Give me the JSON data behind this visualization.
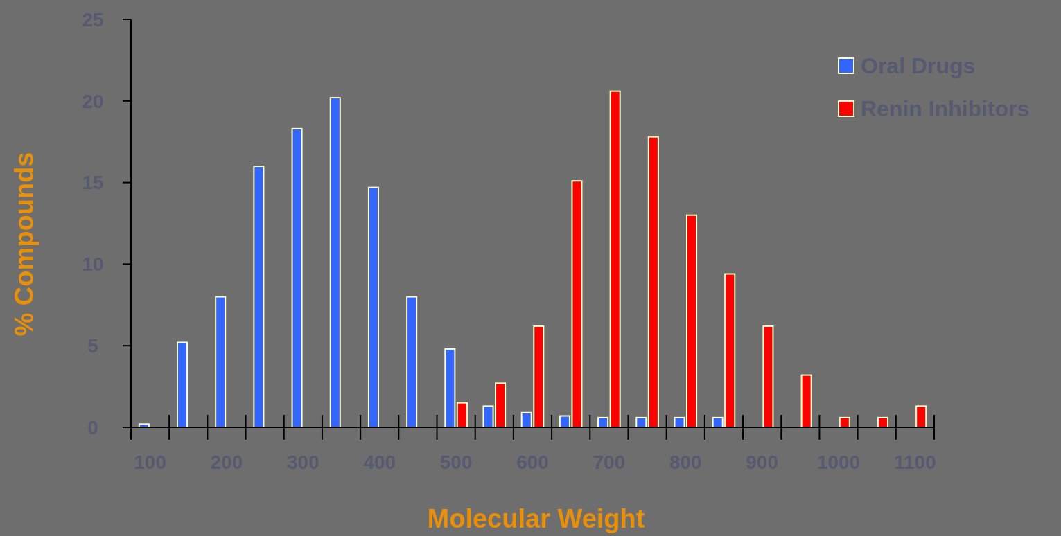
{
  "chart_data": {
    "type": "bar",
    "xlabel": "Molecular Weight",
    "ylabel": "% Compounds",
    "categories": [
      "100",
      null,
      "200",
      null,
      "300",
      null,
      "400",
      null,
      "500",
      null,
      "600",
      null,
      "700",
      null,
      "800",
      null,
      "900",
      null,
      "1000",
      null,
      "1100"
    ],
    "series": [
      {
        "name": "Oral Drugs",
        "color": "#3366ff",
        "values": [
          0.2,
          5.2,
          8.0,
          16.0,
          18.3,
          20.2,
          14.7,
          8.0,
          4.8,
          1.3,
          0.9,
          0.7,
          0.6,
          0.6,
          0.6,
          0.6,
          null,
          null,
          null,
          null,
          null
        ]
      },
      {
        "name": "Renin Inhibitors",
        "color": "#ff0000",
        "values": [
          null,
          null,
          null,
          null,
          null,
          null,
          null,
          null,
          1.5,
          2.7,
          6.2,
          15.1,
          20.6,
          17.8,
          13.0,
          9.4,
          6.2,
          3.2,
          0.6,
          0.6,
          1.3
        ]
      }
    ],
    "ylim": [
      0,
      25
    ],
    "yticks": [
      0,
      5,
      10,
      15,
      20,
      25
    ],
    "grid": false,
    "legend": "top right"
  }
}
